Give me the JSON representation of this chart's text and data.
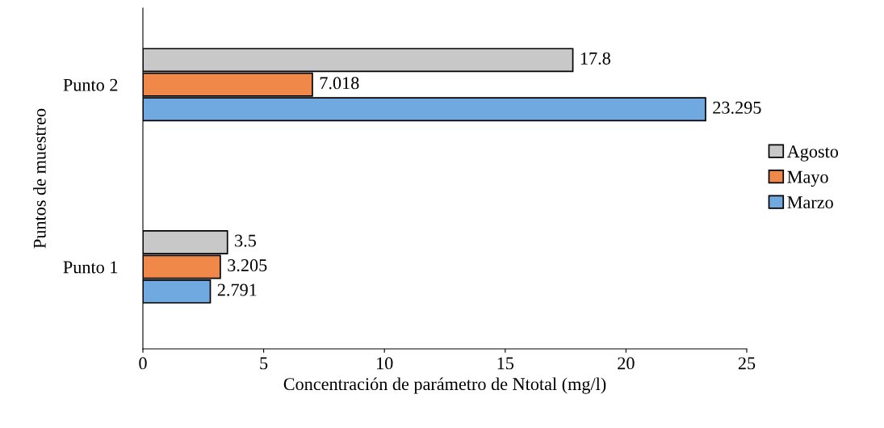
{
  "chart_data": {
    "type": "bar",
    "orientation": "horizontal",
    "xlabel": "Concentración de parámetro de Ntotal (mg/l)",
    "ylabel": "Puntos de muestreo",
    "categories": [
      "Punto 2",
      "Punto 1"
    ],
    "series": [
      {
        "name": "Marzo",
        "color": "#70a9e0",
        "values": [
          23.295,
          2.791
        ]
      },
      {
        "name": "Mayo",
        "color": "#f0884a",
        "values": [
          7.018,
          3.205
        ]
      },
      {
        "name": "Agosto",
        "color": "#c8c8c8",
        "values": [
          17.8,
          3.5
        ]
      }
    ],
    "xlim": [
      0,
      25
    ],
    "xticks": [
      0,
      5,
      10,
      15,
      20,
      25
    ],
    "data_labels": true,
    "legend": "right",
    "grid": false
  }
}
